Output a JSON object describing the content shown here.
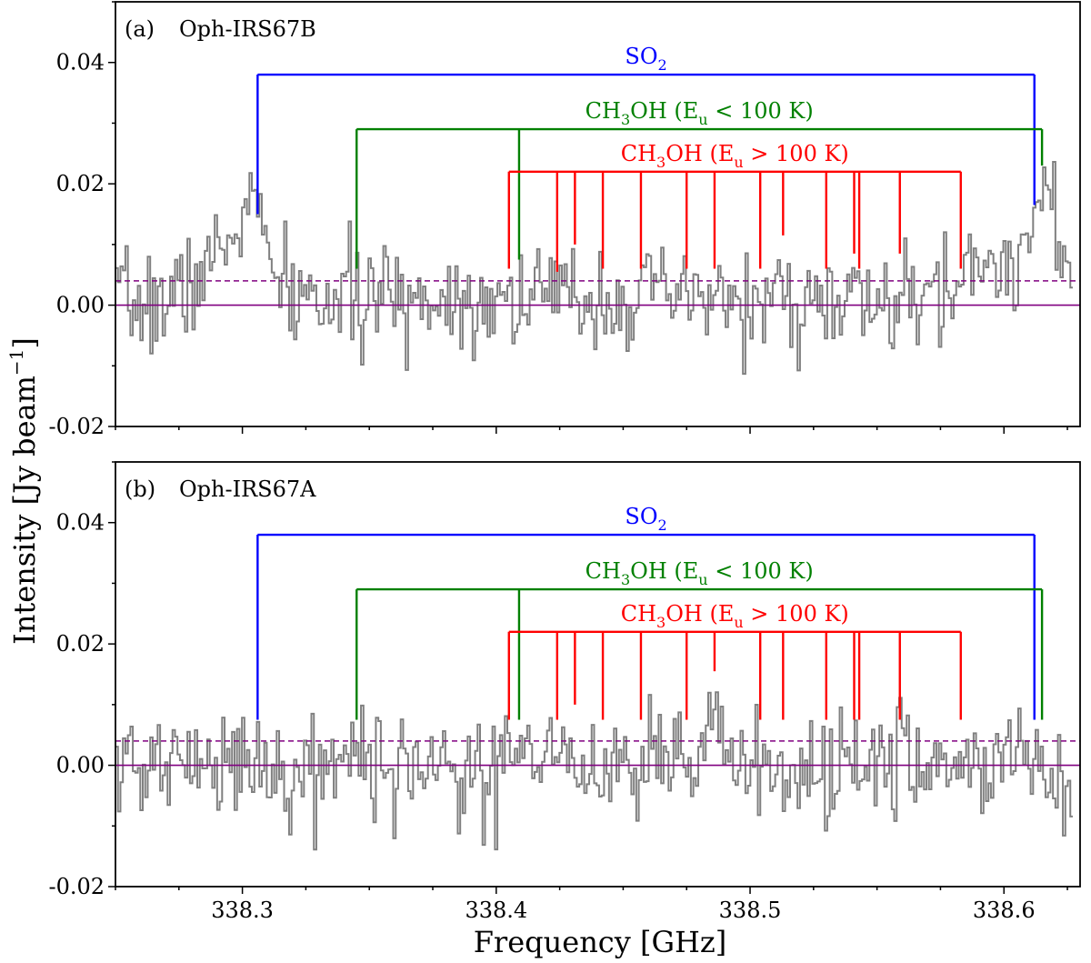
{
  "figure": {
    "ylabel": "Intensity [Jy beam",
    "ylabel_sup": "−1",
    "ylabel_close": "]",
    "xlabel": "Frequency [GHz]"
  },
  "chart_data": [
    {
      "type": "line",
      "panel_label": "(a)",
      "source": "Oph-IRS67B",
      "xlim": [
        338.25,
        338.63
      ],
      "ylim": [
        -0.02,
        0.05
      ],
      "yticks": [
        -0.02,
        0.0,
        0.02,
        0.04
      ],
      "ytick_labels": [
        "-0.02",
        "0.00",
        "0.02",
        "0.04"
      ],
      "hlines": {
        "zero": 0.0,
        "threshold_dashed": 0.004
      },
      "spectrum": {
        "seed": 7,
        "noise_sigma": 0.0042,
        "features": [
          {
            "center": 338.296,
            "width": 0.012,
            "amp": 0.009
          },
          {
            "center": 338.303,
            "width": 0.004,
            "amp": 0.01
          },
          {
            "center": 338.415,
            "width": 0.06,
            "amp": 0.0015
          },
          {
            "center": 338.592,
            "width": 0.01,
            "amp": 0.007
          },
          {
            "center": 338.612,
            "width": 0.005,
            "amp": 0.012
          },
          {
            "center": 338.618,
            "width": 0.004,
            "amp": 0.014
          }
        ]
      },
      "groups": [
        {
          "name": "SO2",
          "label": "SO",
          "label_sub": "2",
          "color": "#0000ff",
          "bar_y": 0.038,
          "lines": [
            {
              "freq": 338.306,
              "end": 0.015
            },
            {
              "freq": 338.612,
              "end": 0.0165
            }
          ]
        },
        {
          "name": "CH3OH low",
          "label_pre": "CH",
          "label_sub1": "3",
          "label_mid": "OH (E",
          "label_sub2": "u",
          "label_post": " < 100 K)",
          "color": "#008000",
          "bar_y": 0.029,
          "lines": [
            {
              "freq": 338.345,
              "end": 0.006
            },
            {
              "freq": 338.409,
              "end": 0.0075
            },
            {
              "freq": 338.615,
              "end": 0.023
            }
          ]
        },
        {
          "name": "CH3OH high",
          "label_pre": "CH",
          "label_sub1": "3",
          "label_mid": "OH (E",
          "label_sub2": "u",
          "label_post": " > 100 K)",
          "color": "#ff0000",
          "bar_y": 0.022,
          "lines": [
            {
              "freq": 338.405,
              "end": 0.006
            },
            {
              "freq": 338.424,
              "end": 0.0055
            },
            {
              "freq": 338.431,
              "end": 0.01
            },
            {
              "freq": 338.442,
              "end": 0.006
            },
            {
              "freq": 338.457,
              "end": 0.006
            },
            {
              "freq": 338.475,
              "end": 0.006
            },
            {
              "freq": 338.486,
              "end": 0.006
            },
            {
              "freq": 338.504,
              "end": 0.006
            },
            {
              "freq": 338.513,
              "end": 0.0115
            },
            {
              "freq": 338.53,
              "end": 0.006
            },
            {
              "freq": 338.541,
              "end": 0.0085
            },
            {
              "freq": 338.543,
              "end": 0.006
            },
            {
              "freq": 338.559,
              "end": 0.0085
            },
            {
              "freq": 338.583,
              "end": 0.006
            }
          ]
        }
      ]
    },
    {
      "type": "line",
      "panel_label": "(b)",
      "source": "Oph-IRS67A",
      "xlim": [
        338.25,
        338.63
      ],
      "ylim": [
        -0.02,
        0.05
      ],
      "yticks": [
        -0.02,
        0.0,
        0.02,
        0.04
      ],
      "ytick_labels": [
        "-0.02",
        "0.00",
        "0.02",
        "0.04"
      ],
      "xticks": [
        338.3,
        338.4,
        338.5,
        338.6
      ],
      "xtick_labels": [
        "338.3",
        "338.4",
        "338.5",
        "338.6"
      ],
      "hlines": {
        "zero": 0.0,
        "threshold_dashed": 0.004
      },
      "spectrum": {
        "seed": 21,
        "noise_sigma": 0.0045,
        "features": [
          {
            "center": 338.486,
            "width": 0.002,
            "amp": 0.011
          }
        ]
      },
      "groups": [
        {
          "name": "SO2",
          "label": "SO",
          "label_sub": "2",
          "color": "#0000ff",
          "bar_y": 0.038,
          "lines": [
            {
              "freq": 338.306,
              "end": 0.0075
            },
            {
              "freq": 338.612,
              "end": 0.0075
            }
          ]
        },
        {
          "name": "CH3OH low",
          "label_pre": "CH",
          "label_sub1": "3",
          "label_mid": "OH (E",
          "label_sub2": "u",
          "label_post": " < 100 K)",
          "color": "#008000",
          "bar_y": 0.029,
          "lines": [
            {
              "freq": 338.345,
              "end": 0.0075
            },
            {
              "freq": 338.409,
              "end": 0.0075
            },
            {
              "freq": 338.615,
              "end": 0.0075
            }
          ]
        },
        {
          "name": "CH3OH high",
          "label_pre": "CH",
          "label_sub1": "3",
          "label_mid": "OH (E",
          "label_sub2": "u",
          "label_post": " > 100 K)",
          "color": "#ff0000",
          "bar_y": 0.022,
          "lines": [
            {
              "freq": 338.405,
              "end": 0.0075
            },
            {
              "freq": 338.424,
              "end": 0.0075
            },
            {
              "freq": 338.431,
              "end": 0.01
            },
            {
              "freq": 338.442,
              "end": 0.0075
            },
            {
              "freq": 338.457,
              "end": 0.0075
            },
            {
              "freq": 338.475,
              "end": 0.0075
            },
            {
              "freq": 338.486,
              "end": 0.0155
            },
            {
              "freq": 338.504,
              "end": 0.0075
            },
            {
              "freq": 338.513,
              "end": 0.0075
            },
            {
              "freq": 338.53,
              "end": 0.0075
            },
            {
              "freq": 338.541,
              "end": 0.0075
            },
            {
              "freq": 338.543,
              "end": 0.0075
            },
            {
              "freq": 338.559,
              "end": 0.0075
            },
            {
              "freq": 338.583,
              "end": 0.0075
            }
          ]
        }
      ]
    }
  ]
}
